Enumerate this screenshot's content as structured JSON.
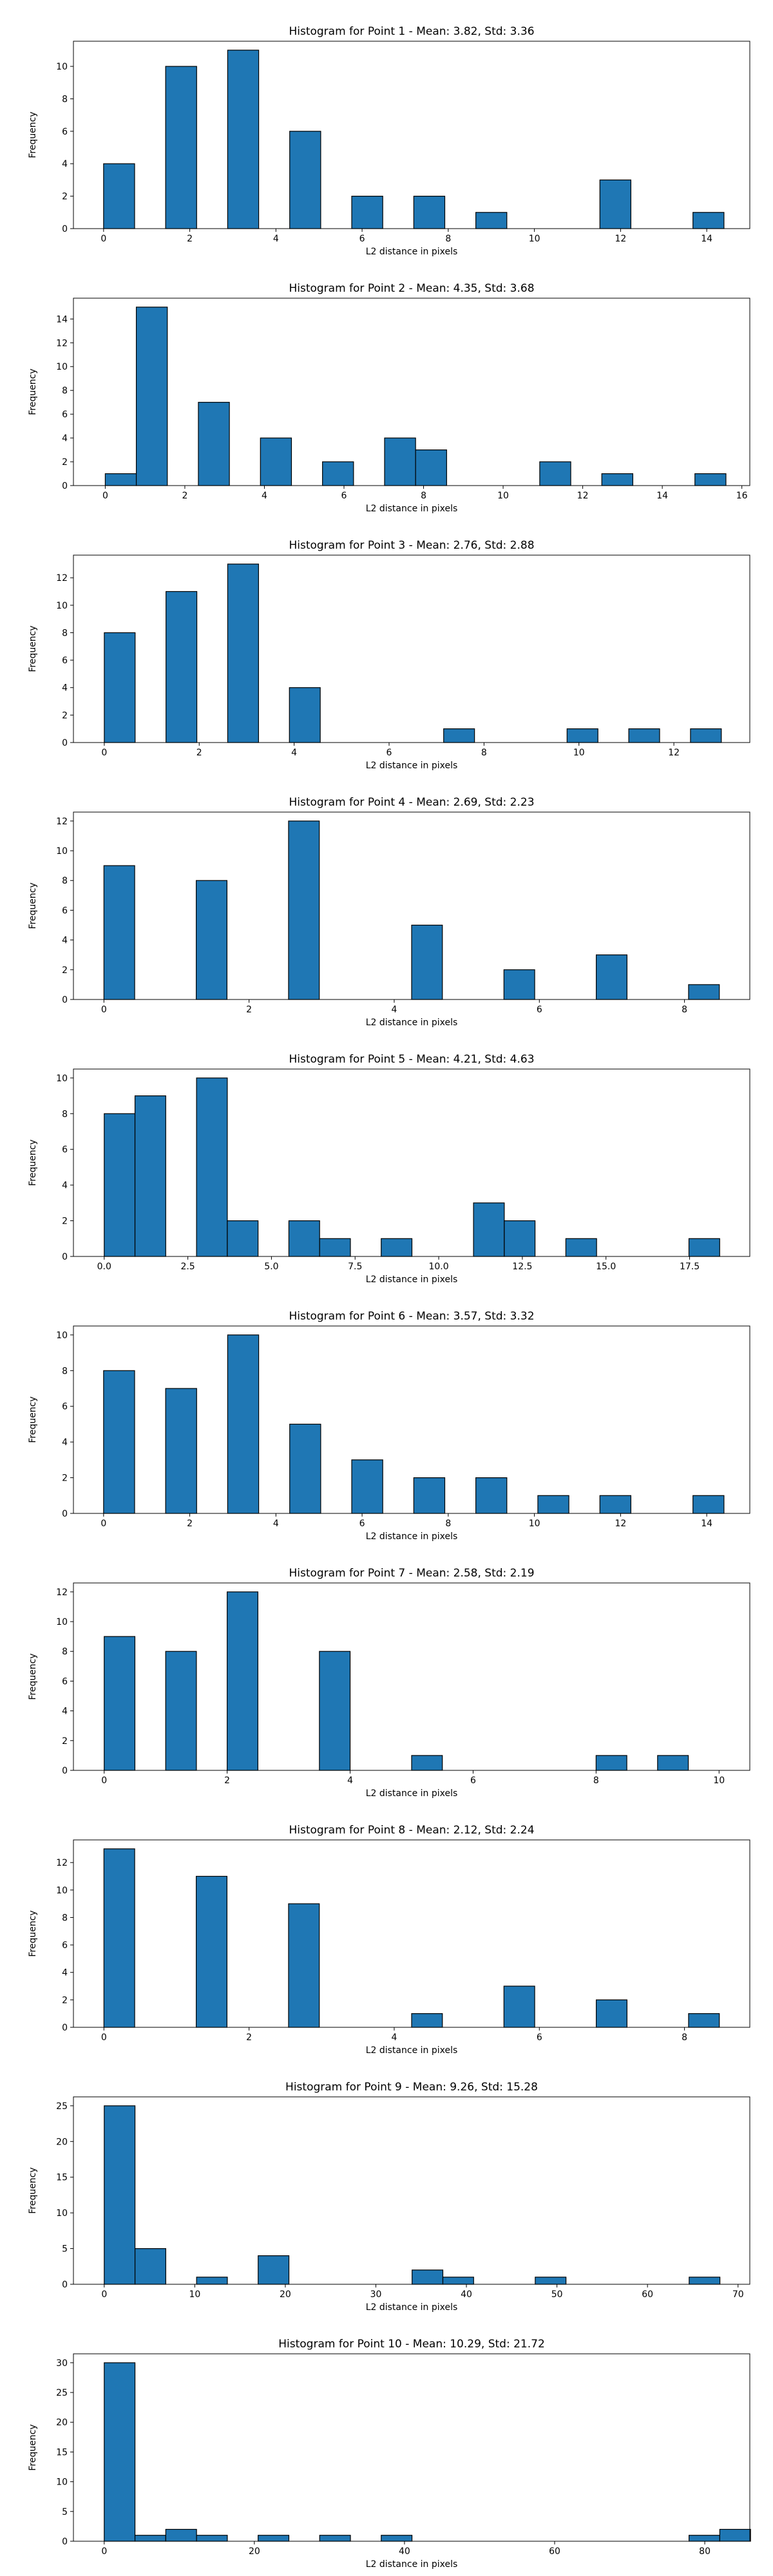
{
  "chart_data": [
    {
      "type": "bar",
      "title": "Histogram for Point 1 - Mean: 3.82, Std: 3.36",
      "xlabel": "L2 distance in pixels",
      "ylabel": "Frequency",
      "xlim": [
        -0.7,
        15.0
      ],
      "ylim": [
        0,
        11.55
      ],
      "xticks": [
        0,
        2,
        4,
        6,
        8,
        10,
        12,
        14
      ],
      "xtick_labels": [
        "0",
        "2",
        "4",
        "6",
        "8",
        "10",
        "12",
        "14"
      ],
      "yticks": [
        0,
        2,
        4,
        6,
        8,
        10
      ],
      "ytick_labels": [
        "0",
        "2",
        "4",
        "6",
        "8",
        "10"
      ],
      "bin_width": 0.72,
      "bins": [
        {
          "x": 0.0,
          "value": 4
        },
        {
          "x": 1.44,
          "value": 10
        },
        {
          "x": 2.88,
          "value": 11
        },
        {
          "x": 4.32,
          "value": 6
        },
        {
          "x": 5.76,
          "value": 2
        },
        {
          "x": 7.2,
          "value": 2
        },
        {
          "x": 8.64,
          "value": 1
        },
        {
          "x": 11.52,
          "value": 3
        },
        {
          "x": 13.68,
          "value": 1
        }
      ]
    },
    {
      "type": "bar",
      "title": "Histogram for Point 2 - Mean: 4.35, Std: 3.68",
      "xlabel": "L2 distance in pixels",
      "ylabel": "Frequency",
      "xlim": [
        -0.8,
        16.2
      ],
      "ylim": [
        0,
        15.75
      ],
      "xticks": [
        0,
        2,
        4,
        6,
        8,
        10,
        12,
        14,
        16
      ],
      "xtick_labels": [
        "0",
        "2",
        "4",
        "6",
        "8",
        "10",
        "12",
        "14",
        "16"
      ],
      "yticks": [
        0,
        2,
        4,
        6,
        8,
        10,
        12,
        14
      ],
      "ytick_labels": [
        "0",
        "2",
        "4",
        "6",
        "8",
        "10",
        "12",
        "14"
      ],
      "bin_width": 0.78,
      "bins": [
        {
          "x": 0.0,
          "value": 1
        },
        {
          "x": 0.78,
          "value": 15
        },
        {
          "x": 2.34,
          "value": 7
        },
        {
          "x": 3.9,
          "value": 4
        },
        {
          "x": 5.46,
          "value": 2
        },
        {
          "x": 7.02,
          "value": 4
        },
        {
          "x": 7.8,
          "value": 3
        },
        {
          "x": 10.92,
          "value": 2
        },
        {
          "x": 12.48,
          "value": 1
        },
        {
          "x": 14.82,
          "value": 1
        }
      ]
    },
    {
      "type": "bar",
      "title": "Histogram for Point 3 - Mean: 2.76, Std: 2.88",
      "xlabel": "L2 distance in pixels",
      "ylabel": "Frequency",
      "xlim": [
        -0.65,
        13.6
      ],
      "ylim": [
        0,
        13.65
      ],
      "xticks": [
        0,
        2,
        4,
        6,
        8,
        10,
        12
      ],
      "xtick_labels": [
        "0",
        "2",
        "4",
        "6",
        "8",
        "10",
        "12"
      ],
      "yticks": [
        0,
        2,
        4,
        6,
        8,
        10,
        12
      ],
      "ytick_labels": [
        "0",
        "2",
        "4",
        "6",
        "8",
        "10",
        "12"
      ],
      "bin_width": 0.65,
      "bins": [
        {
          "x": 0.0,
          "value": 8
        },
        {
          "x": 1.3,
          "value": 11
        },
        {
          "x": 2.6,
          "value": 13
        },
        {
          "x": 3.9,
          "value": 4
        },
        {
          "x": 7.15,
          "value": 1
        },
        {
          "x": 9.75,
          "value": 1
        },
        {
          "x": 11.05,
          "value": 1
        },
        {
          "x": 12.35,
          "value": 1
        }
      ]
    },
    {
      "type": "bar",
      "title": "Histogram for Point 4 - Mean: 2.69, Std: 2.23",
      "xlabel": "L2 distance in pixels",
      "ylabel": "Frequency",
      "xlim": [
        -0.42,
        8.9
      ],
      "ylim": [
        0,
        12.6
      ],
      "xticks": [
        0,
        2,
        4,
        6,
        8
      ],
      "xtick_labels": [
        "0",
        "2",
        "4",
        "6",
        "8"
      ],
      "yticks": [
        0,
        2,
        4,
        6,
        8,
        10,
        12
      ],
      "ytick_labels": [
        "0",
        "2",
        "4",
        "6",
        "8",
        "10",
        "12"
      ],
      "bin_width": 0.424,
      "bins": [
        {
          "x": 0.0,
          "value": 9
        },
        {
          "x": 1.272,
          "value": 8
        },
        {
          "x": 2.544,
          "value": 12
        },
        {
          "x": 4.24,
          "value": 5
        },
        {
          "x": 5.512,
          "value": 2
        },
        {
          "x": 6.784,
          "value": 3
        },
        {
          "x": 8.056,
          "value": 1
        }
      ]
    },
    {
      "type": "bar",
      "title": "Histogram for Point 5 - Mean: 4.21, Std: 4.63",
      "xlabel": "L2 distance in pixels",
      "ylabel": "Frequency",
      "xlim": [
        -0.92,
        19.3
      ],
      "ylim": [
        0,
        10.5
      ],
      "xticks": [
        0,
        2.5,
        5,
        7.5,
        10,
        12.5,
        15,
        17.5
      ],
      "xtick_labels": [
        "0.0",
        "2.5",
        "5.0",
        "7.5",
        "10.0",
        "12.5",
        "15.0",
        "17.5"
      ],
      "yticks": [
        0,
        2,
        4,
        6,
        8,
        10
      ],
      "ytick_labels": [
        "0",
        "2",
        "4",
        "6",
        "8",
        "10"
      ],
      "bin_width": 0.92,
      "bins": [
        {
          "x": 0.0,
          "value": 8
        },
        {
          "x": 0.92,
          "value": 9
        },
        {
          "x": 2.76,
          "value": 10
        },
        {
          "x": 3.68,
          "value": 2
        },
        {
          "x": 5.52,
          "value": 2
        },
        {
          "x": 6.44,
          "value": 1
        },
        {
          "x": 8.28,
          "value": 1
        },
        {
          "x": 11.04,
          "value": 3
        },
        {
          "x": 11.96,
          "value": 2
        },
        {
          "x": 13.8,
          "value": 1
        },
        {
          "x": 17.48,
          "value": 1
        }
      ]
    },
    {
      "type": "bar",
      "title": "Histogram for Point 6 - Mean: 3.57, Std: 3.32",
      "xlabel": "L2 distance in pixels",
      "ylabel": "Frequency",
      "xlim": [
        -0.7,
        15.0
      ],
      "ylim": [
        0,
        10.5
      ],
      "xticks": [
        0,
        2,
        4,
        6,
        8,
        10,
        12,
        14
      ],
      "xtick_labels": [
        "0",
        "2",
        "4",
        "6",
        "8",
        "10",
        "12",
        "14"
      ],
      "yticks": [
        0,
        2,
        4,
        6,
        8,
        10
      ],
      "ytick_labels": [
        "0",
        "2",
        "4",
        "6",
        "8",
        "10"
      ],
      "bin_width": 0.72,
      "bins": [
        {
          "x": 0.0,
          "value": 8
        },
        {
          "x": 1.44,
          "value": 7
        },
        {
          "x": 2.88,
          "value": 10
        },
        {
          "x": 4.32,
          "value": 5
        },
        {
          "x": 5.76,
          "value": 3
        },
        {
          "x": 7.2,
          "value": 2
        },
        {
          "x": 8.64,
          "value": 2
        },
        {
          "x": 10.08,
          "value": 1
        },
        {
          "x": 11.52,
          "value": 1
        },
        {
          "x": 13.68,
          "value": 1
        }
      ]
    },
    {
      "type": "bar",
      "title": "Histogram for Point 7 - Mean: 2.58, Std: 2.19",
      "xlabel": "L2 distance in pixels",
      "ylabel": "Frequency",
      "xlim": [
        -0.5,
        10.5
      ],
      "ylim": [
        0,
        12.6
      ],
      "xticks": [
        0,
        2,
        4,
        6,
        8,
        10
      ],
      "xtick_labels": [
        "0",
        "2",
        "4",
        "6",
        "8",
        "10"
      ],
      "yticks": [
        0,
        2,
        4,
        6,
        8,
        10,
        12
      ],
      "ytick_labels": [
        "0",
        "2",
        "4",
        "6",
        "8",
        "10",
        "12"
      ],
      "bin_width": 0.5,
      "bins": [
        {
          "x": 0.0,
          "value": 9
        },
        {
          "x": 1.0,
          "value": 8
        },
        {
          "x": 2.0,
          "value": 12
        },
        {
          "x": 3.5,
          "value": 8
        },
        {
          "x": 5.0,
          "value": 1
        },
        {
          "x": 8.0,
          "value": 1
        },
        {
          "x": 9.0,
          "value": 1
        }
      ]
    },
    {
      "type": "bar",
      "title": "Histogram for Point 8 - Mean: 2.12, Std: 2.24",
      "xlabel": "L2 distance in pixels",
      "ylabel": "Frequency",
      "xlim": [
        -0.42,
        8.9
      ],
      "ylim": [
        0,
        13.65
      ],
      "xticks": [
        0,
        2,
        4,
        6,
        8
      ],
      "xtick_labels": [
        "0",
        "2",
        "4",
        "6",
        "8"
      ],
      "yticks": [
        0,
        2,
        4,
        6,
        8,
        10,
        12
      ],
      "ytick_labels": [
        "0",
        "2",
        "4",
        "6",
        "8",
        "10",
        "12"
      ],
      "bin_width": 0.424,
      "bins": [
        {
          "x": 0.0,
          "value": 13
        },
        {
          "x": 1.272,
          "value": 11
        },
        {
          "x": 2.544,
          "value": 9
        },
        {
          "x": 4.24,
          "value": 1
        },
        {
          "x": 5.512,
          "value": 3
        },
        {
          "x": 6.784,
          "value": 2
        },
        {
          "x": 8.056,
          "value": 1
        }
      ]
    },
    {
      "type": "bar",
      "title": "Histogram for Point 9 - Mean: 9.26, Std: 15.28",
      "xlabel": "L2 distance in pixels",
      "ylabel": "Frequency",
      "xlim": [
        -3.4,
        71.3
      ],
      "ylim": [
        0,
        26.25
      ],
      "xticks": [
        0,
        10,
        20,
        30,
        40,
        50,
        60,
        70
      ],
      "xtick_labels": [
        "0",
        "10",
        "20",
        "30",
        "40",
        "50",
        "60",
        "70"
      ],
      "yticks": [
        0,
        5,
        10,
        15,
        20,
        25
      ],
      "ytick_labels": [
        "0",
        "5",
        "10",
        "15",
        "20",
        "25"
      ],
      "bin_width": 3.4,
      "bins": [
        {
          "x": 0.0,
          "value": 25
        },
        {
          "x": 3.4,
          "value": 5
        },
        {
          "x": 10.2,
          "value": 1
        },
        {
          "x": 17.0,
          "value": 4
        },
        {
          "x": 34.0,
          "value": 2
        },
        {
          "x": 37.4,
          "value": 1
        },
        {
          "x": 47.6,
          "value": 1
        },
        {
          "x": 64.6,
          "value": 1
        }
      ]
    },
    {
      "type": "bar",
      "title": "Histogram for Point 10 - Mean: 10.29, Std: 21.72",
      "xlabel": "L2 distance in pixels",
      "ylabel": "Frequency",
      "xlim": [
        -4.1,
        86.0
      ],
      "ylim": [
        0,
        31.5
      ],
      "xticks": [
        0,
        20,
        40,
        60,
        80
      ],
      "xtick_labels": [
        "0",
        "20",
        "40",
        "60",
        "80"
      ],
      "yticks": [
        0,
        5,
        10,
        15,
        20,
        25,
        30
      ],
      "ytick_labels": [
        "0",
        "5",
        "10",
        "15",
        "20",
        "25",
        "30"
      ],
      "bin_width": 4.1,
      "bins": [
        {
          "x": 0.0,
          "value": 30
        },
        {
          "x": 4.1,
          "value": 1
        },
        {
          "x": 8.2,
          "value": 2
        },
        {
          "x": 12.3,
          "value": 1
        },
        {
          "x": 20.5,
          "value": 1
        },
        {
          "x": 28.7,
          "value": 1
        },
        {
          "x": 36.9,
          "value": 1
        },
        {
          "x": 77.9,
          "value": 1
        },
        {
          "x": 82.0,
          "value": 2
        }
      ]
    }
  ]
}
